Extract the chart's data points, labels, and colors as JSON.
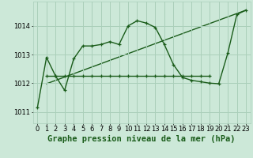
{
  "title": "Graphe pression niveau de la mer (hPa)",
  "background_color": "#cce8d8",
  "grid_color": "#aacfba",
  "line_color": "#1a5c1a",
  "xlim": [
    -0.5,
    23.5
  ],
  "ylim": [
    1010.6,
    1014.85
  ],
  "yticks": [
    1011,
    1012,
    1013,
    1014
  ],
  "xticks": [
    0,
    1,
    2,
    3,
    4,
    5,
    6,
    7,
    8,
    9,
    10,
    11,
    12,
    13,
    14,
    15,
    16,
    17,
    18,
    19,
    20,
    21,
    22,
    23
  ],
  "series1_x": [
    0,
    1,
    2,
    3,
    4,
    5,
    6,
    7,
    8,
    9,
    10,
    11,
    12,
    13,
    14,
    15,
    16,
    17,
    18,
    19,
    20,
    21,
    22,
    23
  ],
  "series1_y": [
    1011.15,
    1012.9,
    1012.25,
    1011.75,
    1012.85,
    1013.3,
    1013.3,
    1013.35,
    1013.45,
    1013.35,
    1014.0,
    1014.18,
    1014.1,
    1013.95,
    1013.35,
    1012.65,
    1012.2,
    1012.1,
    1012.05,
    1012.0,
    1011.98,
    1013.05,
    1014.4,
    1014.55
  ],
  "series2_x": [
    1,
    2,
    3,
    4,
    5,
    6,
    7,
    8,
    9,
    10,
    11,
    12,
    13,
    14,
    15,
    16,
    17,
    18,
    19
  ],
  "series2_y": [
    1012.25,
    1012.25,
    1012.25,
    1012.25,
    1012.25,
    1012.25,
    1012.25,
    1012.25,
    1012.25,
    1012.25,
    1012.25,
    1012.25,
    1012.25,
    1012.25,
    1012.25,
    1012.25,
    1012.25,
    1012.25,
    1012.25
  ],
  "series3_x": [
    1,
    23
  ],
  "series3_y": [
    1011.98,
    1014.55
  ],
  "title_fontsize": 7.5,
  "tick_fontsize": 6,
  "line_width": 1.0,
  "marker_size": 2.5
}
